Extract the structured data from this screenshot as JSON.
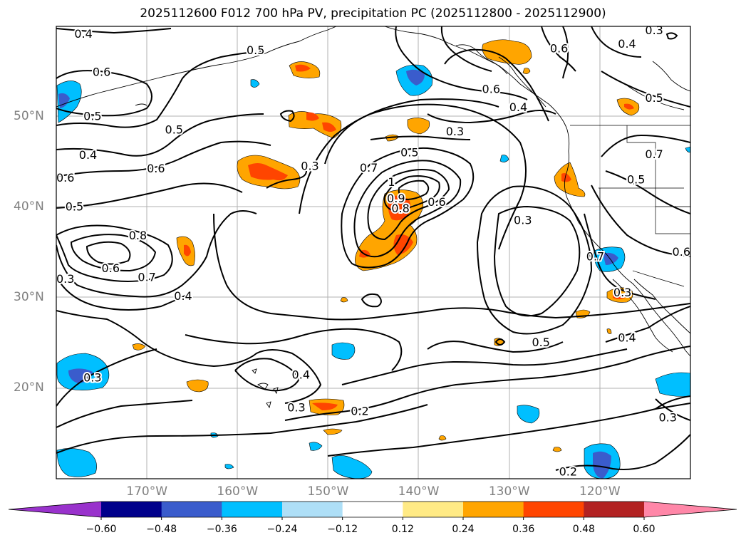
{
  "title": "2025112600 F012 700 hPa PV, precipitation PC (2025112800 - 2025112900)",
  "map": {
    "variable": "700 hPa PV",
    "shaded": "precipitation PC",
    "lon_range": [
      -180,
      -110
    ],
    "lat_range": [
      10,
      60
    ],
    "lat_labels": [
      "50°N",
      "40°N",
      "30°N",
      "20°N"
    ],
    "lon_labels": [
      "170°W",
      "160°W",
      "150°W",
      "140°W",
      "130°W",
      "120°W"
    ]
  },
  "contour_labels": [
    {
      "text": "0.4",
      "lon": -177.0,
      "lat": 59.1
    },
    {
      "text": "0.6",
      "lon": -175.0,
      "lat": 54.9
    },
    {
      "text": "0.5",
      "lon": -176.0,
      "lat": 50.0
    },
    {
      "text": "0.5",
      "lon": -167.0,
      "lat": 48.5
    },
    {
      "text": "0.4",
      "lon": -176.5,
      "lat": 45.7
    },
    {
      "text": "0.6",
      "lon": -179.0,
      "lat": 43.2
    },
    {
      "text": "0.6",
      "lon": -169.0,
      "lat": 44.2
    },
    {
      "text": "0.5",
      "lon": -178.0,
      "lat": 40.0
    },
    {
      "text": "0.8",
      "lon": -171.0,
      "lat": 36.8
    },
    {
      "text": "0.6",
      "lon": -174.0,
      "lat": 33.2
    },
    {
      "text": "0.7",
      "lon": -170.0,
      "lat": 32.2
    },
    {
      "text": "0.4",
      "lon": -166.0,
      "lat": 30.1
    },
    {
      "text": "0.3",
      "lon": -179.0,
      "lat": 32.0
    },
    {
      "text": "0.3",
      "lon": -176.0,
      "lat": 21.1
    },
    {
      "text": "0.5",
      "lon": -158.0,
      "lat": 57.3
    },
    {
      "text": "0.3",
      "lon": -152.0,
      "lat": 44.5
    },
    {
      "text": "0.5",
      "lon": -141.0,
      "lat": 46.0
    },
    {
      "text": "0.3",
      "lon": -136.0,
      "lat": 48.3
    },
    {
      "text": "0.7",
      "lon": -145.5,
      "lat": 44.3
    },
    {
      "text": "1",
      "lon": -143.0,
      "lat": 42.7
    },
    {
      "text": "0.9",
      "lon": -142.5,
      "lat": 40.9
    },
    {
      "text": "0.8",
      "lon": -142.0,
      "lat": 39.8
    },
    {
      "text": "0.6",
      "lon": -138.0,
      "lat": 40.5
    },
    {
      "text": "0.4",
      "lon": -153.0,
      "lat": 21.4
    },
    {
      "text": "0.3",
      "lon": -153.5,
      "lat": 17.8
    },
    {
      "text": "0.2",
      "lon": -146.5,
      "lat": 17.4
    },
    {
      "text": "0.6",
      "lon": -132.0,
      "lat": 53.0
    },
    {
      "text": "0.4",
      "lon": -129.0,
      "lat": 51.0
    },
    {
      "text": "0.3",
      "lon": -128.5,
      "lat": 38.5
    },
    {
      "text": "0.5",
      "lon": -126.5,
      "lat": 25.0
    },
    {
      "text": "0.2",
      "lon": -123.5,
      "lat": 10.7
    },
    {
      "text": "0.6",
      "lon": -124.5,
      "lat": 57.5
    },
    {
      "text": "0.4",
      "lon": -117.0,
      "lat": 58.0
    },
    {
      "text": "0.3",
      "lon": -114.0,
      "lat": 59.5
    },
    {
      "text": "0.5",
      "lon": -114.0,
      "lat": 52.0
    },
    {
      "text": "0.5",
      "lon": -116.0,
      "lat": 43.0
    },
    {
      "text": "0.7",
      "lon": -114.0,
      "lat": 45.8
    },
    {
      "text": "0.6",
      "lon": -111.0,
      "lat": 35.0
    },
    {
      "text": "0.7",
      "lon": -120.5,
      "lat": 34.5
    },
    {
      "text": "0.3",
      "lon": -117.5,
      "lat": 30.5
    },
    {
      "text": "0.4",
      "lon": -117.0,
      "lat": 25.5
    },
    {
      "text": "0.3",
      "lon": -112.5,
      "lat": 16.7
    }
  ],
  "colorbar": {
    "levels": [
      -0.6,
      -0.48,
      -0.36,
      -0.24,
      -0.12,
      0.12,
      0.24,
      0.36,
      0.48,
      0.6
    ],
    "labels": [
      "−0.60",
      "−0.48",
      "−0.36",
      "−0.24",
      "−0.12",
      "0.12",
      "0.24",
      "0.36",
      "0.48",
      "0.60"
    ],
    "colors": [
      "#9932cc",
      "#00008b",
      "#3a5ccc",
      "#00bfff",
      "#aedff7",
      "#ffffff",
      "#ffea85",
      "#ffa500",
      "#ff4500",
      "#b22222",
      "#ff87a8"
    ]
  }
}
